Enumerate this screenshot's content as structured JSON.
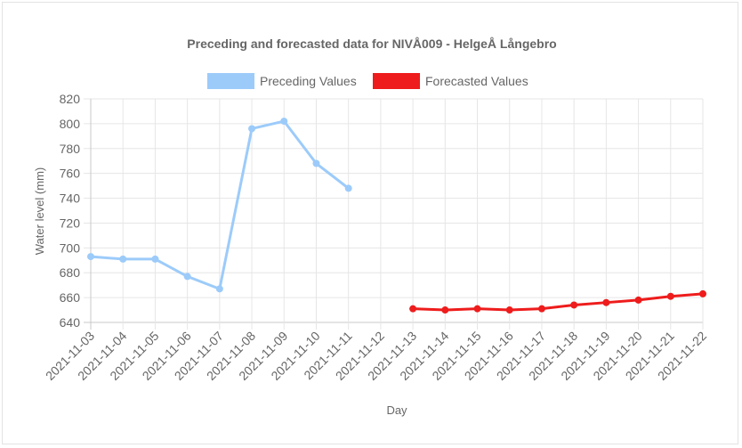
{
  "chart_data": {
    "type": "line",
    "title": "Preceding and forecasted data for NIVÅ009 - HelgeÅ Långebro",
    "xlabel": "Day",
    "ylabel": "Water level (mm)",
    "ylim": [
      640,
      820
    ],
    "yticks": [
      640,
      660,
      680,
      700,
      720,
      740,
      760,
      780,
      800,
      820
    ],
    "grid": true,
    "legend_position": "top",
    "categories": [
      "2021-11-03",
      "2021-11-04",
      "2021-11-05",
      "2021-11-06",
      "2021-11-07",
      "2021-11-08",
      "2021-11-09",
      "2021-11-10",
      "2021-11-11",
      "2021-11-12",
      "2021-11-13",
      "2021-11-14",
      "2021-11-15",
      "2021-11-16",
      "2021-11-17",
      "2021-11-18",
      "2021-11-19",
      "2021-11-20",
      "2021-11-21",
      "2021-11-22"
    ],
    "series": [
      {
        "name": "Preceding Values",
        "color": "#9ccbfa",
        "values": [
          693,
          691,
          691,
          677,
          667,
          796,
          802,
          768,
          748,
          null,
          null,
          null,
          null,
          null,
          null,
          null,
          null,
          null,
          null,
          null
        ]
      },
      {
        "name": "Forecasted Values",
        "color": "#ee1c1c",
        "values": [
          null,
          null,
          null,
          null,
          null,
          null,
          null,
          null,
          null,
          null,
          651,
          650,
          651,
          650,
          651,
          654,
          656,
          658,
          661,
          663
        ]
      }
    ]
  }
}
